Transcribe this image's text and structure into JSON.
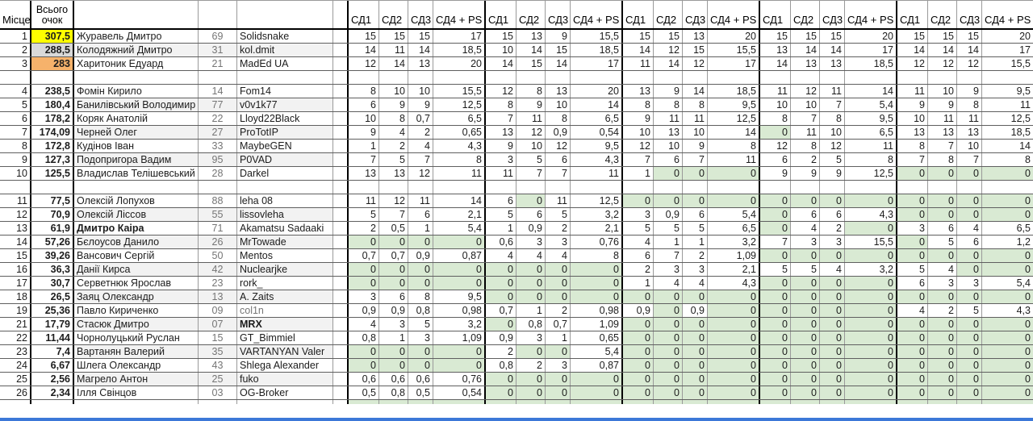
{
  "app": "spreadsheet-leaderboard",
  "colors": {
    "highlight_first": "#ffff00",
    "highlight_second": "#d9d9d9",
    "highlight_third": "#f6b26b",
    "zero_cell": "#d9ead3",
    "row_stripe": "#f2f2f2",
    "bottom_bar": "#3c78d8"
  },
  "header": {
    "place_label": "Місце",
    "total_label_line1": "Всього",
    "total_label_line2": "очок",
    "score_labels": [
      "СД1",
      "СД2",
      "СД3",
      "СД4 + PS"
    ],
    "group_count": 5
  },
  "rows": [
    {
      "type": "data",
      "place": "1",
      "total": "307,5",
      "total_bg": "first",
      "name": "Журавель Дмитро",
      "num": "69",
      "nick": "Solidsnake",
      "scores": [
        "15",
        "15",
        "15",
        "17",
        "15",
        "13",
        "9",
        "15,5",
        "15",
        "15",
        "13",
        "20",
        "15",
        "15",
        "15",
        "20",
        "15",
        "15",
        "15",
        "20"
      ]
    },
    {
      "type": "data",
      "place": "2",
      "total": "288,5",
      "total_bg": "second",
      "stripe": true,
      "name": "Колодяжний Дмитро",
      "num": "31",
      "nick": "kol.dmit",
      "scores": [
        "14",
        "11",
        "14",
        "18,5",
        "10",
        "14",
        "15",
        "18,5",
        "14",
        "12",
        "15",
        "15,5",
        "13",
        "14",
        "14",
        "17",
        "14",
        "14",
        "14",
        "17"
      ]
    },
    {
      "type": "data",
      "place": "3",
      "total": "283",
      "total_bg": "third",
      "name": "Харитоник Едуард",
      "num": "21",
      "nick": "MadEd UA",
      "scores": [
        "12",
        "14",
        "13",
        "20",
        "14",
        "15",
        "14",
        "17",
        "11",
        "14",
        "12",
        "17",
        "14",
        "13",
        "13",
        "18,5",
        "12",
        "12",
        "12",
        "15,5"
      ]
    },
    {
      "type": "blank"
    },
    {
      "type": "data",
      "place": "4",
      "total": "238,5",
      "name": "Фомін Кирило",
      "num": "14",
      "nick": "Fom14",
      "scores": [
        "8",
        "10",
        "10",
        "15,5",
        "12",
        "8",
        "13",
        "20",
        "13",
        "9",
        "14",
        "18,5",
        "11",
        "12",
        "11",
        "14",
        "11",
        "10",
        "9",
        "9,5"
      ]
    },
    {
      "type": "data",
      "place": "5",
      "total": "180,4",
      "stripe": true,
      "name": "Банилівський Володимир",
      "num": "77",
      "nick": "v0v1k77",
      "scores": [
        "6",
        "9",
        "9",
        "12,5",
        "8",
        "9",
        "10",
        "14",
        "8",
        "8",
        "8",
        "9,5",
        "10",
        "10",
        "7",
        "5,4",
        "9",
        "9",
        "8",
        "11"
      ]
    },
    {
      "type": "data",
      "place": "6",
      "total": "178,2",
      "name": "Коряк Анатолій",
      "num": "22",
      "nick": "Lloyd22Black",
      "scores": [
        "10",
        "8",
        "0,7",
        "6,5",
        "7",
        "11",
        "8",
        "6,5",
        "9",
        "11",
        "11",
        "12,5",
        "8",
        "7",
        "8",
        "9,5",
        "10",
        "11",
        "11",
        "12,5"
      ]
    },
    {
      "type": "data",
      "place": "7",
      "total": "174,09",
      "stripe": true,
      "name": "Черней Олег",
      "num": "27",
      "nick": "ProTotIP",
      "scores": [
        "9",
        "4",
        "2",
        "0,65",
        "13",
        "12",
        "0,9",
        "0,54",
        "10",
        "13",
        "10",
        "14",
        "0",
        "11",
        "10",
        "6,5",
        "13",
        "13",
        "13",
        "18,5"
      ]
    },
    {
      "type": "data",
      "place": "8",
      "total": "172,8",
      "name": "Кудінов Іван",
      "num": "33",
      "nick": "MaybeGEN",
      "scores": [
        "1",
        "2",
        "4",
        "4,3",
        "9",
        "10",
        "12",
        "9,5",
        "12",
        "10",
        "9",
        "8",
        "12",
        "8",
        "12",
        "11",
        "8",
        "7",
        "10",
        "14"
      ]
    },
    {
      "type": "data",
      "place": "9",
      "total": "127,3",
      "stripe": true,
      "name": "Подопригора Вадим",
      "num": "95",
      "nick": "P0VAD",
      "scores": [
        "7",
        "5",
        "7",
        "8",
        "3",
        "5",
        "6",
        "4,3",
        "7",
        "6",
        "7",
        "11",
        "6",
        "2",
        "5",
        "8",
        "7",
        "8",
        "7",
        "8"
      ]
    },
    {
      "type": "data",
      "place": "10",
      "total": "125,5",
      "name": "Владислав Телішевський",
      "num": "28",
      "nick": "Darkel",
      "scores": [
        "13",
        "13",
        "12",
        "11",
        "11",
        "7",
        "7",
        "11",
        "1",
        "0",
        "0",
        "0",
        "9",
        "9",
        "9",
        "12,5",
        "0",
        "0",
        "0",
        "0"
      ]
    },
    {
      "type": "blank"
    },
    {
      "type": "data",
      "place": "11",
      "total": "77,5",
      "name": "Олексій Лопухов",
      "num": "88",
      "nick": "leha 08",
      "scores": [
        "11",
        "12",
        "11",
        "14",
        "6",
        "0",
        "11",
        "12,5",
        "0",
        "0",
        "0",
        "0",
        "0",
        "0",
        "0",
        "0",
        "0",
        "0",
        "0",
        "0"
      ]
    },
    {
      "type": "data",
      "place": "12",
      "total": "70,9",
      "stripe": true,
      "name": "Олексій Ліссов",
      "num": "55",
      "nick": "lissovleha",
      "scores": [
        "5",
        "7",
        "6",
        "2,1",
        "5",
        "6",
        "5",
        "3,2",
        "3",
        "0,9",
        "6",
        "5,4",
        "0",
        "6",
        "6",
        "4,3",
        "0",
        "0",
        "0",
        "0"
      ]
    },
    {
      "type": "data",
      "place": "13",
      "total": "61,9",
      "name": "Дмитро Каіра",
      "name_bold": true,
      "num": "71",
      "nick": "Akamatsu Sadaaki",
      "scores": [
        "2",
        "0,5",
        "1",
        "5,4",
        "1",
        "0,9",
        "2",
        "2,1",
        "5",
        "5",
        "5",
        "6,5",
        "0",
        "4",
        "2",
        "0",
        "3",
        "6",
        "4",
        "6,5"
      ]
    },
    {
      "type": "data",
      "place": "14",
      "total": "57,26",
      "stripe": true,
      "name": "Бєлоусов Данило",
      "num": "26",
      "nick": "MrTowade",
      "scores": [
        "0",
        "0",
        "0",
        "0",
        "0,6",
        "3",
        "3",
        "0,76",
        "4",
        "1",
        "1",
        "3,2",
        "7",
        "3",
        "3",
        "15,5",
        "0",
        "5",
        "6",
        "1,2"
      ]
    },
    {
      "type": "data",
      "place": "15",
      "total": "39,26",
      "name": "Вансович Сергій",
      "num": "50",
      "nick": "Mentos",
      "scores": [
        "0,7",
        "0,7",
        "0,9",
        "0,87",
        "4",
        "4",
        "4",
        "8",
        "6",
        "7",
        "2",
        "1,09",
        "0",
        "0",
        "0",
        "0",
        "0",
        "0",
        "0",
        "0"
      ]
    },
    {
      "type": "data",
      "place": "16",
      "total": "36,3",
      "stripe": true,
      "name": "Данії Кирса",
      "num": "42",
      "nick": "Nuclearjke",
      "scores": [
        "0",
        "0",
        "0",
        "0",
        "0",
        "0",
        "0",
        "0",
        "2",
        "3",
        "3",
        "2,1",
        "5",
        "5",
        "4",
        "3,2",
        "5",
        "4",
        "0",
        "0"
      ]
    },
    {
      "type": "data",
      "place": "17",
      "total": "30,7",
      "name": "Серветнюк Ярослав",
      "num": "23",
      "nick": "rork_",
      "scores": [
        "0",
        "0",
        "0",
        "0",
        "0",
        "0",
        "0",
        "0",
        "1",
        "4",
        "4",
        "4,3",
        "0",
        "0",
        "0",
        "0",
        "6",
        "3",
        "3",
        "5,4"
      ]
    },
    {
      "type": "data",
      "place": "18",
      "total": "26,5",
      "stripe": true,
      "name": "Заяц Олександр",
      "num": "13",
      "nick": "A. Zaits",
      "scores": [
        "3",
        "6",
        "8",
        "9,5",
        "0",
        "0",
        "0",
        "0",
        "0",
        "0",
        "0",
        "0",
        "0",
        "0",
        "0",
        "0",
        "0",
        "0",
        "0",
        "0"
      ]
    },
    {
      "type": "data",
      "place": "19",
      "total": "25,36",
      "name": "Павло Кириченко",
      "num": "09",
      "nick": "col1n",
      "nick_gray": true,
      "scores": [
        "0,9",
        "0,9",
        "0,8",
        "0,98",
        "0,7",
        "1",
        "2",
        "0,98",
        "0,9",
        "0",
        "0,9",
        "0",
        "0",
        "0",
        "0",
        "0",
        "4",
        "2",
        "5",
        "4,3"
      ]
    },
    {
      "type": "data",
      "place": "21",
      "total": "17,79",
      "stripe": true,
      "name": "Стасюк Дмитро",
      "num": "07",
      "nick": "MRX",
      "nick_bold": true,
      "scores": [
        "4",
        "3",
        "5",
        "3,2",
        "0",
        "0,8",
        "0,7",
        "1,09",
        "0",
        "0",
        "0",
        "0",
        "0",
        "0",
        "0",
        "0",
        "0",
        "0",
        "0",
        "0"
      ]
    },
    {
      "type": "data",
      "place": "22",
      "total": "11,44",
      "name": "Чорнолуцький Руслан",
      "num": "15",
      "nick": "GT_Bimmiel",
      "scores": [
        "0,8",
        "1",
        "3",
        "1,09",
        "0,9",
        "3",
        "1",
        "0,65",
        "0",
        "0",
        "0",
        "0",
        "0",
        "0",
        "0",
        "0",
        "0",
        "0",
        "0",
        "0"
      ]
    },
    {
      "type": "data",
      "place": "23",
      "total": "7,4",
      "stripe": true,
      "name": "Вартанян Валерий",
      "num": "35",
      "nick": "VARTANYAN Valer",
      "scores": [
        "0",
        "0",
        "0",
        "0",
        "2",
        "0",
        "0",
        "5,4",
        "0",
        "0",
        "0",
        "0",
        "0",
        "0",
        "0",
        "0",
        "0",
        "0",
        "0",
        "0"
      ]
    },
    {
      "type": "data",
      "place": "24",
      "total": "6,67",
      "name": "Шлега Олександр",
      "num": "43",
      "nick": "Shlega Alexander",
      "scores": [
        "0",
        "0",
        "0",
        "0",
        "0,8",
        "2",
        "3",
        "0,87",
        "0",
        "0",
        "0",
        "0",
        "0",
        "0",
        "0",
        "0",
        "0",
        "0",
        "0",
        "0"
      ]
    },
    {
      "type": "data",
      "place": "25",
      "total": "2,56",
      "stripe": true,
      "name": "Магрело Антон",
      "num": "25",
      "nick": "fuko",
      "scores": [
        "0,6",
        "0,6",
        "0,6",
        "0,76",
        "0",
        "0",
        "0",
        "0",
        "0",
        "0",
        "0",
        "0",
        "0",
        "0",
        "0",
        "0",
        "0",
        "0",
        "0",
        "0"
      ]
    },
    {
      "type": "data",
      "place": "26",
      "total": "2,34",
      "name": "Ілля Свінцов",
      "num": "03",
      "nick": "OG-Broker",
      "scores": [
        "0,5",
        "0,8",
        "0,5",
        "0,54",
        "0",
        "0",
        "0",
        "0",
        "0",
        "0",
        "0",
        "0",
        "0",
        "0",
        "0",
        "0",
        "0",
        "0",
        "0",
        "0"
      ]
    }
  ]
}
